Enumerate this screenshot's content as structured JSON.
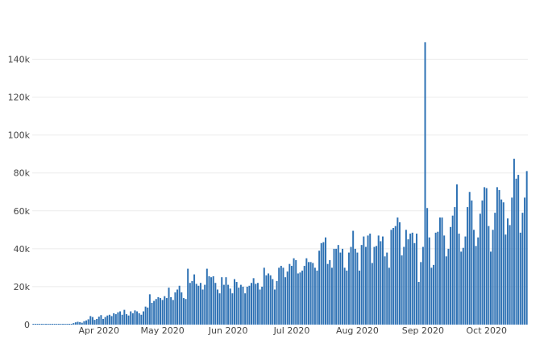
{
  "chart_data": {
    "type": "bar",
    "x_start": "2020-03-01",
    "x_tick_labels": [
      {
        "label": "Apr 2020",
        "date": "2020-04-01"
      },
      {
        "label": "May 2020",
        "date": "2020-05-01"
      },
      {
        "label": "Jun 2020",
        "date": "2020-06-01"
      },
      {
        "label": "Jul 2020",
        "date": "2020-07-01"
      },
      {
        "label": "Aug 2020",
        "date": "2020-08-01"
      },
      {
        "label": "Sep 2020",
        "date": "2020-09-01"
      },
      {
        "label": "Oct 2020",
        "date": "2020-10-01"
      }
    ],
    "y_tick_labels": [
      {
        "label": "0",
        "value": 0
      },
      {
        "label": "20k",
        "value": 20000
      },
      {
        "label": "40k",
        "value": 40000
      },
      {
        "label": "60k",
        "value": 60000
      },
      {
        "label": "80k",
        "value": 80000
      },
      {
        "label": "100k",
        "value": 100000
      },
      {
        "label": "120k",
        "value": 120000
      },
      {
        "label": "140k",
        "value": 140000
      }
    ],
    "ylim": [
      0,
      150000
    ],
    "grid": true,
    "bar_color": "#2f72b4",
    "values": [
      0,
      0,
      0,
      0,
      0,
      0,
      0,
      0,
      0,
      0,
      0,
      0,
      0,
      0,
      0,
      0,
      0,
      200,
      400,
      800,
      1200,
      1500,
      1300,
      1000,
      1800,
      2200,
      2800,
      4500,
      4000,
      2500,
      3000,
      4200,
      5000,
      3000,
      4000,
      4800,
      5200,
      4500,
      6000,
      5500,
      6500,
      7000,
      5200,
      7800,
      5500,
      4800,
      7000,
      6000,
      7500,
      7000,
      6000,
      5200,
      7000,
      9500,
      9000,
      16000,
      11500,
      12500,
      13500,
      14500,
      14000,
      13000,
      15000,
      14000,
      19500,
      14500,
      13000,
      17000,
      18500,
      20500,
      17000,
      14000,
      13500,
      29500,
      22000,
      23000,
      26500,
      21500,
      20500,
      22000,
      18500,
      21000,
      29500,
      25500,
      25000,
      25500,
      22000,
      18500,
      16500,
      25000,
      21000,
      25000,
      21000,
      19000,
      16500,
      24000,
      22500,
      19500,
      21000,
      20000,
      16500,
      20000,
      20500,
      22000,
      24500,
      21500,
      22000,
      18500,
      20000,
      30000,
      26000,
      27000,
      26000,
      24000,
      18500,
      23000,
      30000,
      31000,
      30000,
      25000,
      28000,
      32000,
      31000,
      35000,
      34000,
      27000,
      27500,
      28500,
      31000,
      35000,
      33000,
      33000,
      32500,
      30000,
      28500,
      39000,
      43000,
      43500,
      46000,
      32000,
      34000,
      30000,
      40000,
      40000,
      42000,
      38000,
      40000,
      30000,
      28500,
      38000,
      41000,
      49500,
      40000,
      38000,
      28500,
      42000,
      46500,
      41000,
      47000,
      48000,
      32500,
      41000,
      41500,
      47000,
      44000,
      46500,
      36000,
      38000,
      30000,
      50000,
      51000,
      52000,
      56500,
      54000,
      36500,
      41000,
      50000,
      45000,
      48000,
      48500,
      43000,
      48000,
      22500,
      33000,
      41000,
      149000,
      61500,
      46000,
      30000,
      31500,
      48500,
      49000,
      56500,
      56500,
      47000,
      36000,
      40000,
      51500,
      57500,
      62000,
      74000,
      48000,
      38500,
      40500,
      46500,
      62000,
      70000,
      65500,
      50000,
      41500,
      46000,
      58500,
      65500,
      72500,
      72000,
      52000,
      38500,
      50000,
      59000,
      72500,
      71000,
      66000,
      64500,
      47500,
      56000,
      52500,
      67000,
      87500,
      77000,
      79000,
      48500,
      59000,
      67000,
      81000
    ]
  }
}
